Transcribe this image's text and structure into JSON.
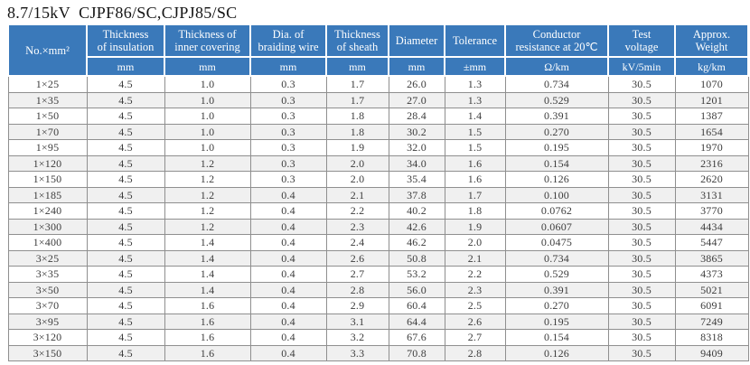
{
  "title": "8.7/15kV  CJPF86/SC,CJPJ85/SC",
  "colors": {
    "header_bg": "#3a79ba",
    "header_text": "#ffffff",
    "row_alt_bg": "#f0f0f0",
    "body_border": "#8f8f8f",
    "body_text": "#3c3c3c"
  },
  "table": {
    "columns": [
      {
        "label": "No.×mm²",
        "unit": ""
      },
      {
        "label": "Thickness\nof insulation",
        "unit": "mm"
      },
      {
        "label": "Thickness of\ninner covering",
        "unit": "mm"
      },
      {
        "label": "Dia. of\nbraiding wire",
        "unit": "mm"
      },
      {
        "label": "Thickness\nof sheath",
        "unit": "mm"
      },
      {
        "label": "Diameter",
        "unit": "mm"
      },
      {
        "label": "Tolerance",
        "unit": "±mm"
      },
      {
        "label": "Conductor\nresistance at 20℃",
        "unit": "Ω/km"
      },
      {
        "label": "Test\nvoltage",
        "unit": "kV/5min"
      },
      {
        "label": "Approx.\nWeight",
        "unit": "kg/km"
      }
    ],
    "rows": [
      [
        "1×25",
        "4.5",
        "1.0",
        "0.3",
        "1.7",
        "26.0",
        "1.3",
        "0.734",
        "30.5",
        "1070"
      ],
      [
        "1×35",
        "4.5",
        "1.0",
        "0.3",
        "1.7",
        "27.0",
        "1.3",
        "0.529",
        "30.5",
        "1201"
      ],
      [
        "1×50",
        "4.5",
        "1.0",
        "0.3",
        "1.8",
        "28.4",
        "1.4",
        "0.391",
        "30.5",
        "1387"
      ],
      [
        "1×70",
        "4.5",
        "1.0",
        "0.3",
        "1.8",
        "30.2",
        "1.5",
        "0.270",
        "30.5",
        "1654"
      ],
      [
        "1×95",
        "4.5",
        "1.0",
        "0.3",
        "1.9",
        "32.0",
        "1.5",
        "0.195",
        "30.5",
        "1970"
      ],
      [
        "1×120",
        "4.5",
        "1.2",
        "0.3",
        "2.0",
        "34.0",
        "1.6",
        "0.154",
        "30.5",
        "2316"
      ],
      [
        "1×150",
        "4.5",
        "1.2",
        "0.3",
        "2.0",
        "35.4",
        "1.6",
        "0.126",
        "30.5",
        "2620"
      ],
      [
        "1×185",
        "4.5",
        "1.2",
        "0.4",
        "2.1",
        "37.8",
        "1.7",
        "0.100",
        "30.5",
        "3131"
      ],
      [
        "1×240",
        "4.5",
        "1.2",
        "0.4",
        "2.2",
        "40.2",
        "1.8",
        "0.0762",
        "30.5",
        "3770"
      ],
      [
        "1×300",
        "4.5",
        "1.2",
        "0.4",
        "2.3",
        "42.6",
        "1.9",
        "0.0607",
        "30.5",
        "4434"
      ],
      [
        "1×400",
        "4.5",
        "1.4",
        "0.4",
        "2.4",
        "46.2",
        "2.0",
        "0.0475",
        "30.5",
        "5447"
      ],
      [
        "3×25",
        "4.5",
        "1.4",
        "0.4",
        "2.6",
        "50.8",
        "2.1",
        "0.734",
        "30.5",
        "3865"
      ],
      [
        "3×35",
        "4.5",
        "1.4",
        "0.4",
        "2.7",
        "53.2",
        "2.2",
        "0.529",
        "30.5",
        "4373"
      ],
      [
        "3×50",
        "4.5",
        "1.4",
        "0.4",
        "2.8",
        "56.0",
        "2.3",
        "0.391",
        "30.5",
        "5021"
      ],
      [
        "3×70",
        "4.5",
        "1.6",
        "0.4",
        "2.9",
        "60.4",
        "2.5",
        "0.270",
        "30.5",
        "6091"
      ],
      [
        "3×95",
        "4.5",
        "1.6",
        "0.4",
        "3.1",
        "64.4",
        "2.6",
        "0.195",
        "30.5",
        "7249"
      ],
      [
        "3×120",
        "4.5",
        "1.6",
        "0.4",
        "3.2",
        "67.6",
        "2.7",
        "0.154",
        "30.5",
        "8318"
      ],
      [
        "3×150",
        "4.5",
        "1.6",
        "0.4",
        "3.3",
        "70.8",
        "2.8",
        "0.126",
        "30.5",
        "9409"
      ]
    ]
  }
}
